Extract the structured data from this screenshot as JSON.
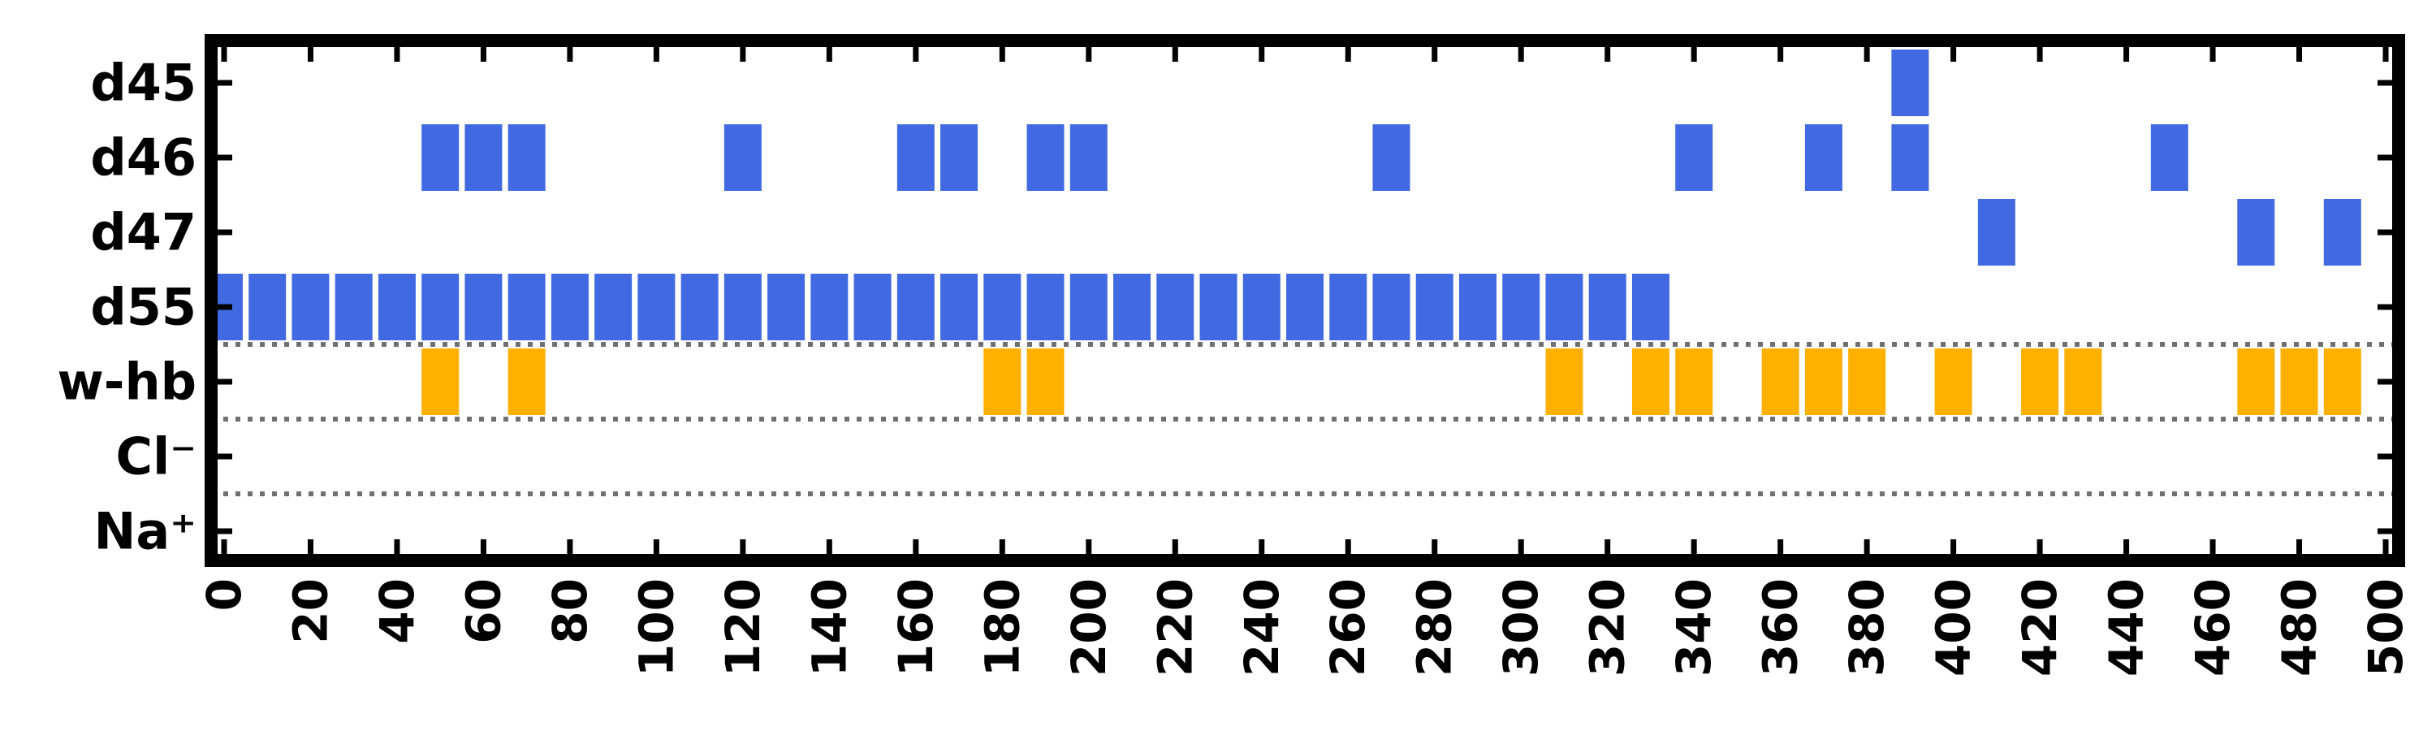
{
  "chart_data": {
    "type": "heatmap",
    "title": "",
    "xlabel": "",
    "ylabel": "",
    "xlim": [
      -3,
      503
    ],
    "x_ticks": [
      0,
      20,
      40,
      60,
      80,
      100,
      120,
      140,
      160,
      180,
      200,
      220,
      240,
      260,
      280,
      300,
      320,
      340,
      360,
      380,
      400,
      420,
      440,
      460,
      480,
      500
    ],
    "rows": [
      {
        "label": "d45",
        "color": "#4169E1",
        "x": [
          390
        ]
      },
      {
        "label": "d46",
        "color": "#4169E1",
        "x": [
          50,
          60,
          70,
          120,
          160,
          170,
          190,
          200,
          270,
          340,
          370,
          390,
          450
        ]
      },
      {
        "label": "d47",
        "color": "#4169E1",
        "x": [
          410,
          470,
          490
        ]
      },
      {
        "label": "d55",
        "color": "#4169E1",
        "x": [
          0,
          10,
          20,
          30,
          40,
          50,
          60,
          70,
          80,
          90,
          100,
          110,
          120,
          130,
          140,
          150,
          160,
          170,
          180,
          190,
          200,
          210,
          220,
          230,
          240,
          250,
          260,
          270,
          280,
          290,
          300,
          310,
          320,
          330
        ]
      },
      {
        "label": "w-hb",
        "color": "#FFB000",
        "x": [
          50,
          70,
          180,
          190,
          310,
          330,
          340,
          360,
          370,
          380,
          400,
          420,
          430,
          470,
          480,
          490
        ]
      },
      {
        "label": "Cl⁻",
        "color": "#FFB000",
        "x": []
      },
      {
        "label": "Na⁺",
        "color": "#FFB000",
        "x": []
      }
    ],
    "group_separators_after_row": [
      "d55",
      "w-hb",
      "Cl⁻"
    ],
    "grid": false,
    "legend": "none"
  }
}
